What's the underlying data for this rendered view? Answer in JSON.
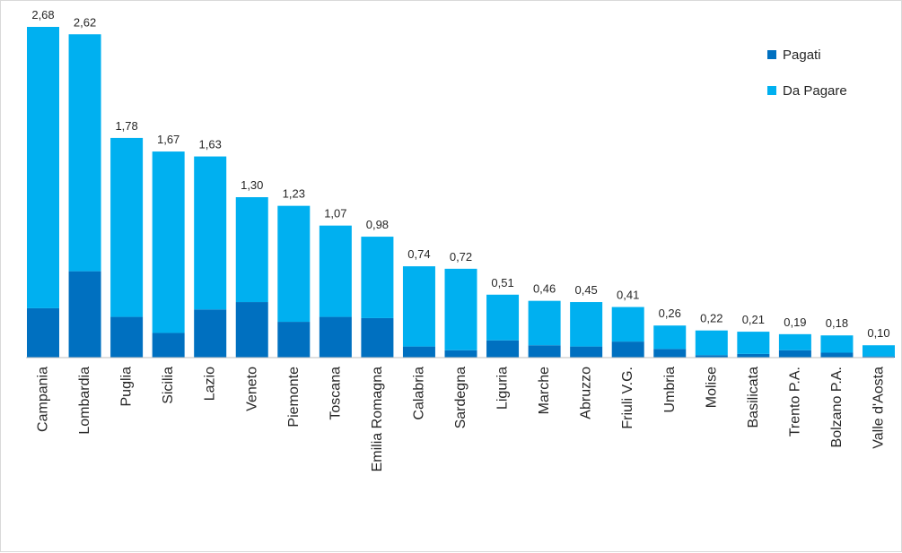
{
  "chart_data": {
    "type": "bar",
    "stacked": true,
    "categories": [
      "Campania",
      "Lombardia",
      "Puglia",
      "Sicilia",
      "Lazio",
      "Veneto",
      "Piemonte",
      "Toscana",
      "Emilia Romagna",
      "Calabria",
      "Sardegna",
      "Liguria",
      "Marche",
      "Abruzzo",
      "Friuli V.G.",
      "Umbria",
      "Molise",
      "Basilicata",
      "Trento P.A.",
      "Bolzano P.A.",
      "Valle d'Aosta"
    ],
    "totals_labels": [
      "2,68",
      "2,62",
      "1,78",
      "1,67",
      "1,63",
      "1,30",
      "1,23",
      "1,07",
      "0,98",
      "0,74",
      "0,72",
      "0,51",
      "0,46",
      "0,45",
      "0,41",
      "0,26",
      "0,22",
      "0,21",
      "0,19",
      "0,18",
      "0,10"
    ],
    "series": [
      {
        "name": "Pagati",
        "color": "#0070c0",
        "values": [
          0.4,
          0.7,
          0.33,
          0.2,
          0.39,
          0.45,
          0.29,
          0.33,
          0.32,
          0.09,
          0.06,
          0.14,
          0.1,
          0.09,
          0.13,
          0.07,
          0.02,
          0.03,
          0.06,
          0.04,
          0.01
        ]
      },
      {
        "name": "Da Pagare",
        "color": "#00b0f0",
        "values": [
          2.28,
          1.92,
          1.45,
          1.47,
          1.24,
          0.85,
          0.94,
          0.74,
          0.66,
          0.65,
          0.66,
          0.37,
          0.36,
          0.36,
          0.28,
          0.19,
          0.2,
          0.18,
          0.13,
          0.14,
          0.09
        ]
      }
    ],
    "ylim": [
      0,
      2.68
    ],
    "grid": false,
    "legend": {
      "placement": "top-right"
    },
    "title": "",
    "xlabel": "",
    "ylabel": ""
  }
}
